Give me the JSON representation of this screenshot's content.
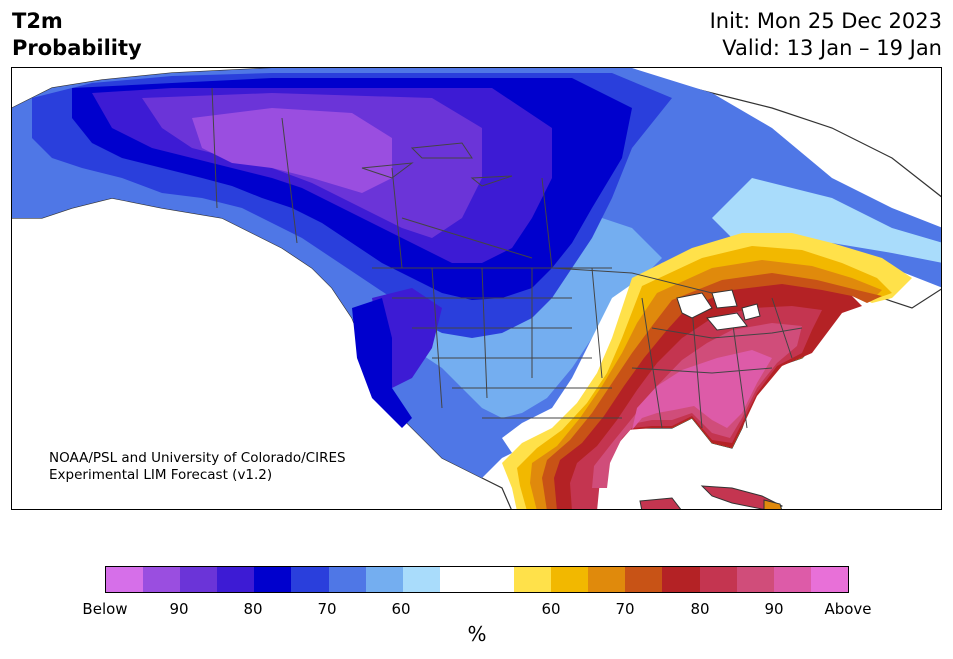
{
  "header": {
    "variable": "T2m",
    "quantity": "Probability",
    "init": "Init: Mon 25 Dec 2023",
    "valid": "Valid: 13 Jan – 19 Jan"
  },
  "credit": {
    "line1": "NOAA/PSL and University of Colorado/CIRES",
    "line2": "Experimental LIM Forecast (v1.2)"
  },
  "colorbar": {
    "colors": [
      "#d66fe9",
      "#9a4ee0",
      "#6b34d8",
      "#3d1bd4",
      "#0000cd",
      "#2a3fdc",
      "#4f77e6",
      "#74aef0",
      "#a9dcfb",
      "#ffffff",
      "#ffffff",
      "#ffe14a",
      "#f2b800",
      "#e08a0c",
      "#c85316",
      "#b42225",
      "#c43550",
      "#d04d7a",
      "#dd5ba8",
      "#e870d8"
    ],
    "labels": [
      "Below",
      "90",
      "80",
      "70",
      "60",
      "60",
      "70",
      "80",
      "90",
      "Above"
    ],
    "unit": "%"
  }
}
